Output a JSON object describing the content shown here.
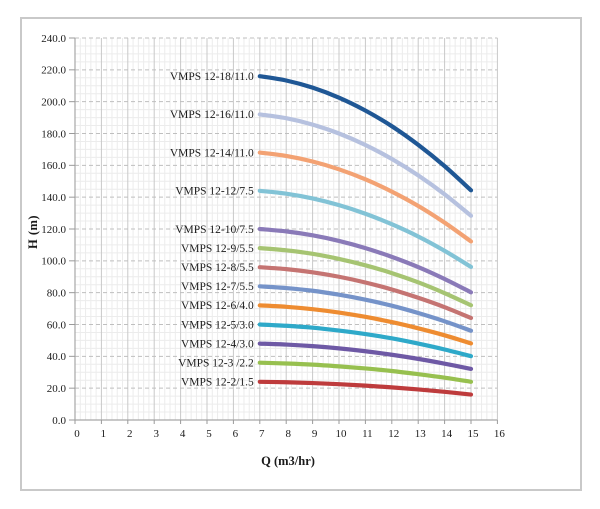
{
  "chart_data": {
    "type": "line",
    "title": "",
    "xlabel": "Q (m3/hr)",
    "ylabel": "H (m)",
    "xlim": [
      0,
      16
    ],
    "ylim": [
      0,
      240
    ],
    "x_tick_labels": [
      "0",
      "1",
      "2",
      "3",
      "4",
      "5",
      "6",
      "7",
      "8",
      "9",
      "10",
      "11",
      "12",
      "13",
      "14",
      "15",
      "16"
    ],
    "y_tick_labels": [
      "0.0",
      "20.0",
      "40.0",
      "60.0",
      "80.0",
      "100.0",
      "120.0",
      "140.0",
      "160.0",
      "180.0",
      "200.0",
      "220.0",
      "240.0"
    ],
    "grid": "fine minor mesh; solid vertical majors at each integer; dashed horizontal majors every 20",
    "legend_position": "inline labels left of curve starts",
    "x": [
      7,
      8,
      9,
      10,
      11,
      12,
      13,
      14,
      15
    ],
    "series": [
      {
        "name": "VMPS 12-18/11.0",
        "color": "#1f5795",
        "values": [
          216.0,
          213.3,
          208.8,
          202.5,
          194.4,
          184.6,
          172.9,
          159.5,
          144.3
        ]
      },
      {
        "name": "VMPS 12-16/11.0",
        "color": "#b6c1df",
        "values": [
          192.0,
          189.6,
          185.6,
          180.0,
          172.8,
          164.0,
          153.7,
          141.8,
          128.3
        ]
      },
      {
        "name": "VMPS 12-14/11.0",
        "color": "#f3a273",
        "values": [
          168.0,
          165.9,
          162.4,
          157.5,
          151.2,
          143.5,
          134.5,
          124.0,
          112.2
        ]
      },
      {
        "name": "VMPS 12-12/7.5",
        "color": "#82c3d6",
        "values": [
          144.0,
          142.2,
          139.2,
          135.0,
          129.6,
          123.0,
          115.3,
          106.3,
          96.2
        ]
      },
      {
        "name": "VMPS 12-10/7.5",
        "color": "#8a7ab8",
        "values": [
          120.0,
          118.5,
          116.0,
          112.5,
          108.0,
          102.5,
          96.1,
          88.6,
          80.2
        ]
      },
      {
        "name": "VMPS 12-9/5.5",
        "color": "#a6c472",
        "values": [
          108.0,
          106.6,
          104.4,
          101.2,
          97.2,
          92.3,
          86.5,
          79.7,
          72.1
        ]
      },
      {
        "name": "VMPS 12-8/5.5",
        "color": "#c57472",
        "values": [
          96.0,
          94.8,
          92.8,
          90.0,
          86.4,
          82.0,
          76.8,
          70.9,
          64.1
        ]
      },
      {
        "name": "VMPS 12-7/5.5",
        "color": "#7593c9",
        "values": [
          84.0,
          82.9,
          81.2,
          78.7,
          75.6,
          71.8,
          67.2,
          62.0,
          56.1
        ]
      },
      {
        "name": "VMPS 12-6/4.0",
        "color": "#ee8c31",
        "values": [
          72.0,
          71.1,
          69.6,
          67.5,
          64.8,
          61.5,
          57.6,
          53.2,
          48.1
        ]
      },
      {
        "name": "VMPS 12-5/3.0",
        "color": "#2ea9c9",
        "values": [
          60.0,
          59.2,
          58.0,
          56.2,
          54.0,
          51.3,
          48.0,
          44.3,
          40.1
        ]
      },
      {
        "name": "VMPS 12-4/3.0",
        "color": "#6e59a5",
        "values": [
          48.0,
          47.4,
          46.4,
          45.0,
          43.2,
          41.0,
          38.4,
          35.4,
          32.1
        ]
      },
      {
        "name": "VMPS 12-3 /2.2",
        "color": "#97c04f",
        "values": [
          36.0,
          35.5,
          34.8,
          33.7,
          32.4,
          30.8,
          28.8,
          26.6,
          24.0
        ]
      },
      {
        "name": "VMPS 12-2/1.5",
        "color": "#be3b3c",
        "values": [
          24.0,
          23.7,
          23.2,
          22.5,
          21.6,
          20.5,
          19.2,
          17.7,
          16.0
        ]
      }
    ],
    "style_colors": {
      "frame_border": "#c9c9c9",
      "axis_line": "#a8a8a8",
      "tick": "#9a9a9a",
      "grid_minor": "#ececec",
      "grid_major_v": "#c9c9c9",
      "grid_major_h": "#bfbfbf",
      "text": "#1b1b1b"
    }
  }
}
